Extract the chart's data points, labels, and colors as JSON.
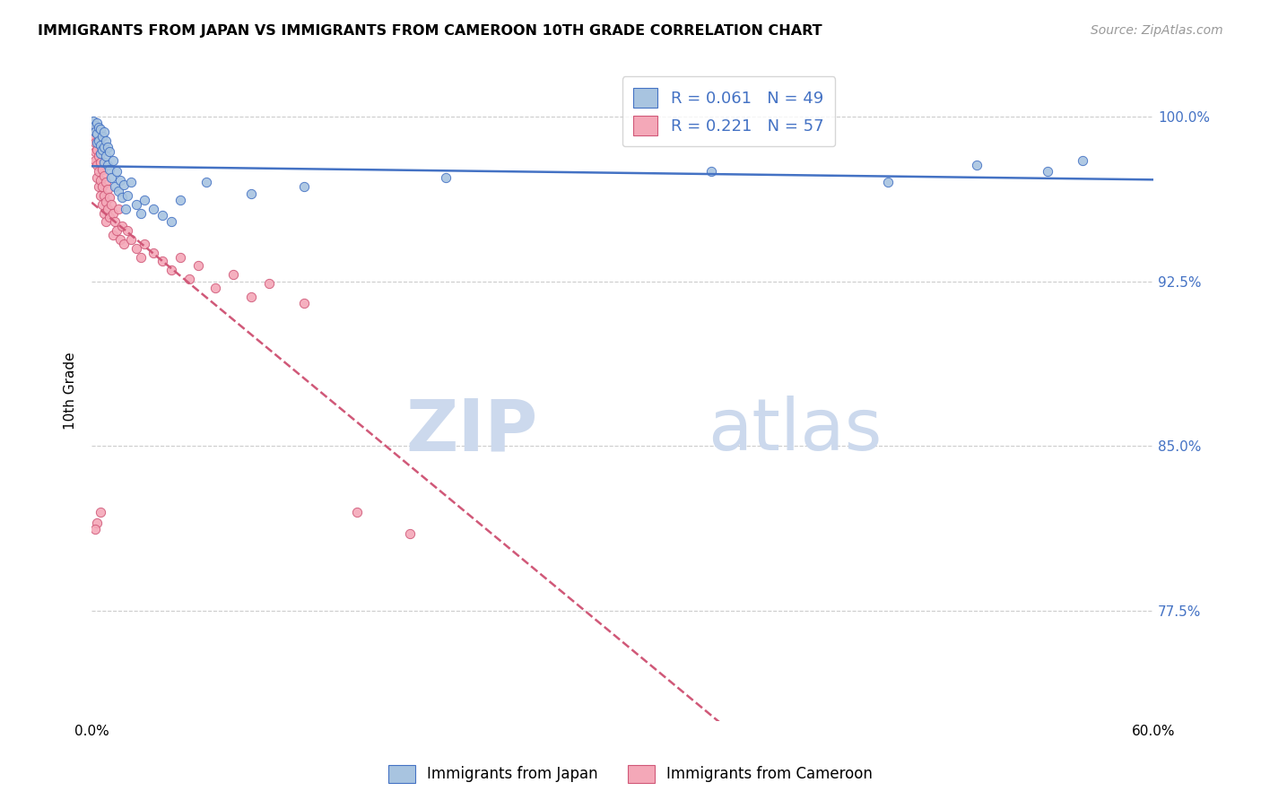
{
  "title": "IMMIGRANTS FROM JAPAN VS IMMIGRANTS FROM CAMEROON 10TH GRADE CORRELATION CHART",
  "source": "Source: ZipAtlas.com",
  "ylabel": "10th Grade",
  "ytick_vals": [
    0.775,
    0.85,
    0.925,
    1.0
  ],
  "ytick_labels": [
    "77.5%",
    "85.0%",
    "92.5%",
    "100.0%"
  ],
  "xmin": 0.0,
  "xmax": 0.6,
  "ymin": 0.725,
  "ymax": 1.025,
  "japan_R": 0.061,
  "japan_N": 49,
  "cameroon_R": 0.221,
  "cameroon_N": 57,
  "japan_color": "#a8c4e0",
  "cameroon_color": "#f4a8b8",
  "japan_line_color": "#4472c4",
  "cameroon_line_color": "#d05878",
  "watermark_zip": "ZIP",
  "watermark_atlas": "atlas",
  "watermark_color": "#ccd9ed",
  "japan_x": [
    0.001,
    0.002,
    0.002,
    0.003,
    0.003,
    0.003,
    0.004,
    0.004,
    0.005,
    0.005,
    0.005,
    0.006,
    0.006,
    0.007,
    0.007,
    0.007,
    0.008,
    0.008,
    0.009,
    0.009,
    0.01,
    0.01,
    0.011,
    0.012,
    0.013,
    0.014,
    0.015,
    0.016,
    0.017,
    0.018,
    0.019,
    0.02,
    0.022,
    0.025,
    0.028,
    0.03,
    0.035,
    0.04,
    0.045,
    0.05,
    0.065,
    0.09,
    0.12,
    0.2,
    0.35,
    0.45,
    0.5,
    0.54,
    0.56
  ],
  "japan_y": [
    0.998,
    0.996,
    0.993,
    0.997,
    0.992,
    0.988,
    0.995,
    0.989,
    0.994,
    0.987,
    0.983,
    0.991,
    0.985,
    0.993,
    0.986,
    0.979,
    0.989,
    0.982,
    0.986,
    0.978,
    0.984,
    0.976,
    0.972,
    0.98,
    0.968,
    0.975,
    0.966,
    0.971,
    0.963,
    0.969,
    0.958,
    0.964,
    0.97,
    0.96,
    0.956,
    0.962,
    0.958,
    0.955,
    0.952,
    0.962,
    0.97,
    0.965,
    0.968,
    0.972,
    0.975,
    0.97,
    0.978,
    0.975,
    0.98
  ],
  "cameroon_x": [
    0.001,
    0.001,
    0.002,
    0.002,
    0.002,
    0.003,
    0.003,
    0.003,
    0.004,
    0.004,
    0.004,
    0.005,
    0.005,
    0.005,
    0.006,
    0.006,
    0.006,
    0.007,
    0.007,
    0.007,
    0.008,
    0.008,
    0.008,
    0.009,
    0.009,
    0.01,
    0.01,
    0.011,
    0.012,
    0.012,
    0.013,
    0.014,
    0.015,
    0.016,
    0.017,
    0.018,
    0.02,
    0.022,
    0.025,
    0.028,
    0.03,
    0.035,
    0.04,
    0.045,
    0.05,
    0.055,
    0.06,
    0.07,
    0.08,
    0.09,
    0.1,
    0.12,
    0.15,
    0.18,
    0.005,
    0.003,
    0.002
  ],
  "cameroon_y": [
    0.995,
    0.99,
    0.988,
    0.984,
    0.98,
    0.985,
    0.978,
    0.972,
    0.982,
    0.975,
    0.968,
    0.979,
    0.971,
    0.964,
    0.976,
    0.968,
    0.96,
    0.973,
    0.964,
    0.956,
    0.97,
    0.961,
    0.952,
    0.967,
    0.958,
    0.963,
    0.954,
    0.96,
    0.956,
    0.946,
    0.952,
    0.948,
    0.958,
    0.944,
    0.95,
    0.942,
    0.948,
    0.944,
    0.94,
    0.936,
    0.942,
    0.938,
    0.934,
    0.93,
    0.936,
    0.926,
    0.932,
    0.922,
    0.928,
    0.918,
    0.924,
    0.915,
    0.82,
    0.81,
    0.82,
    0.815,
    0.812
  ]
}
